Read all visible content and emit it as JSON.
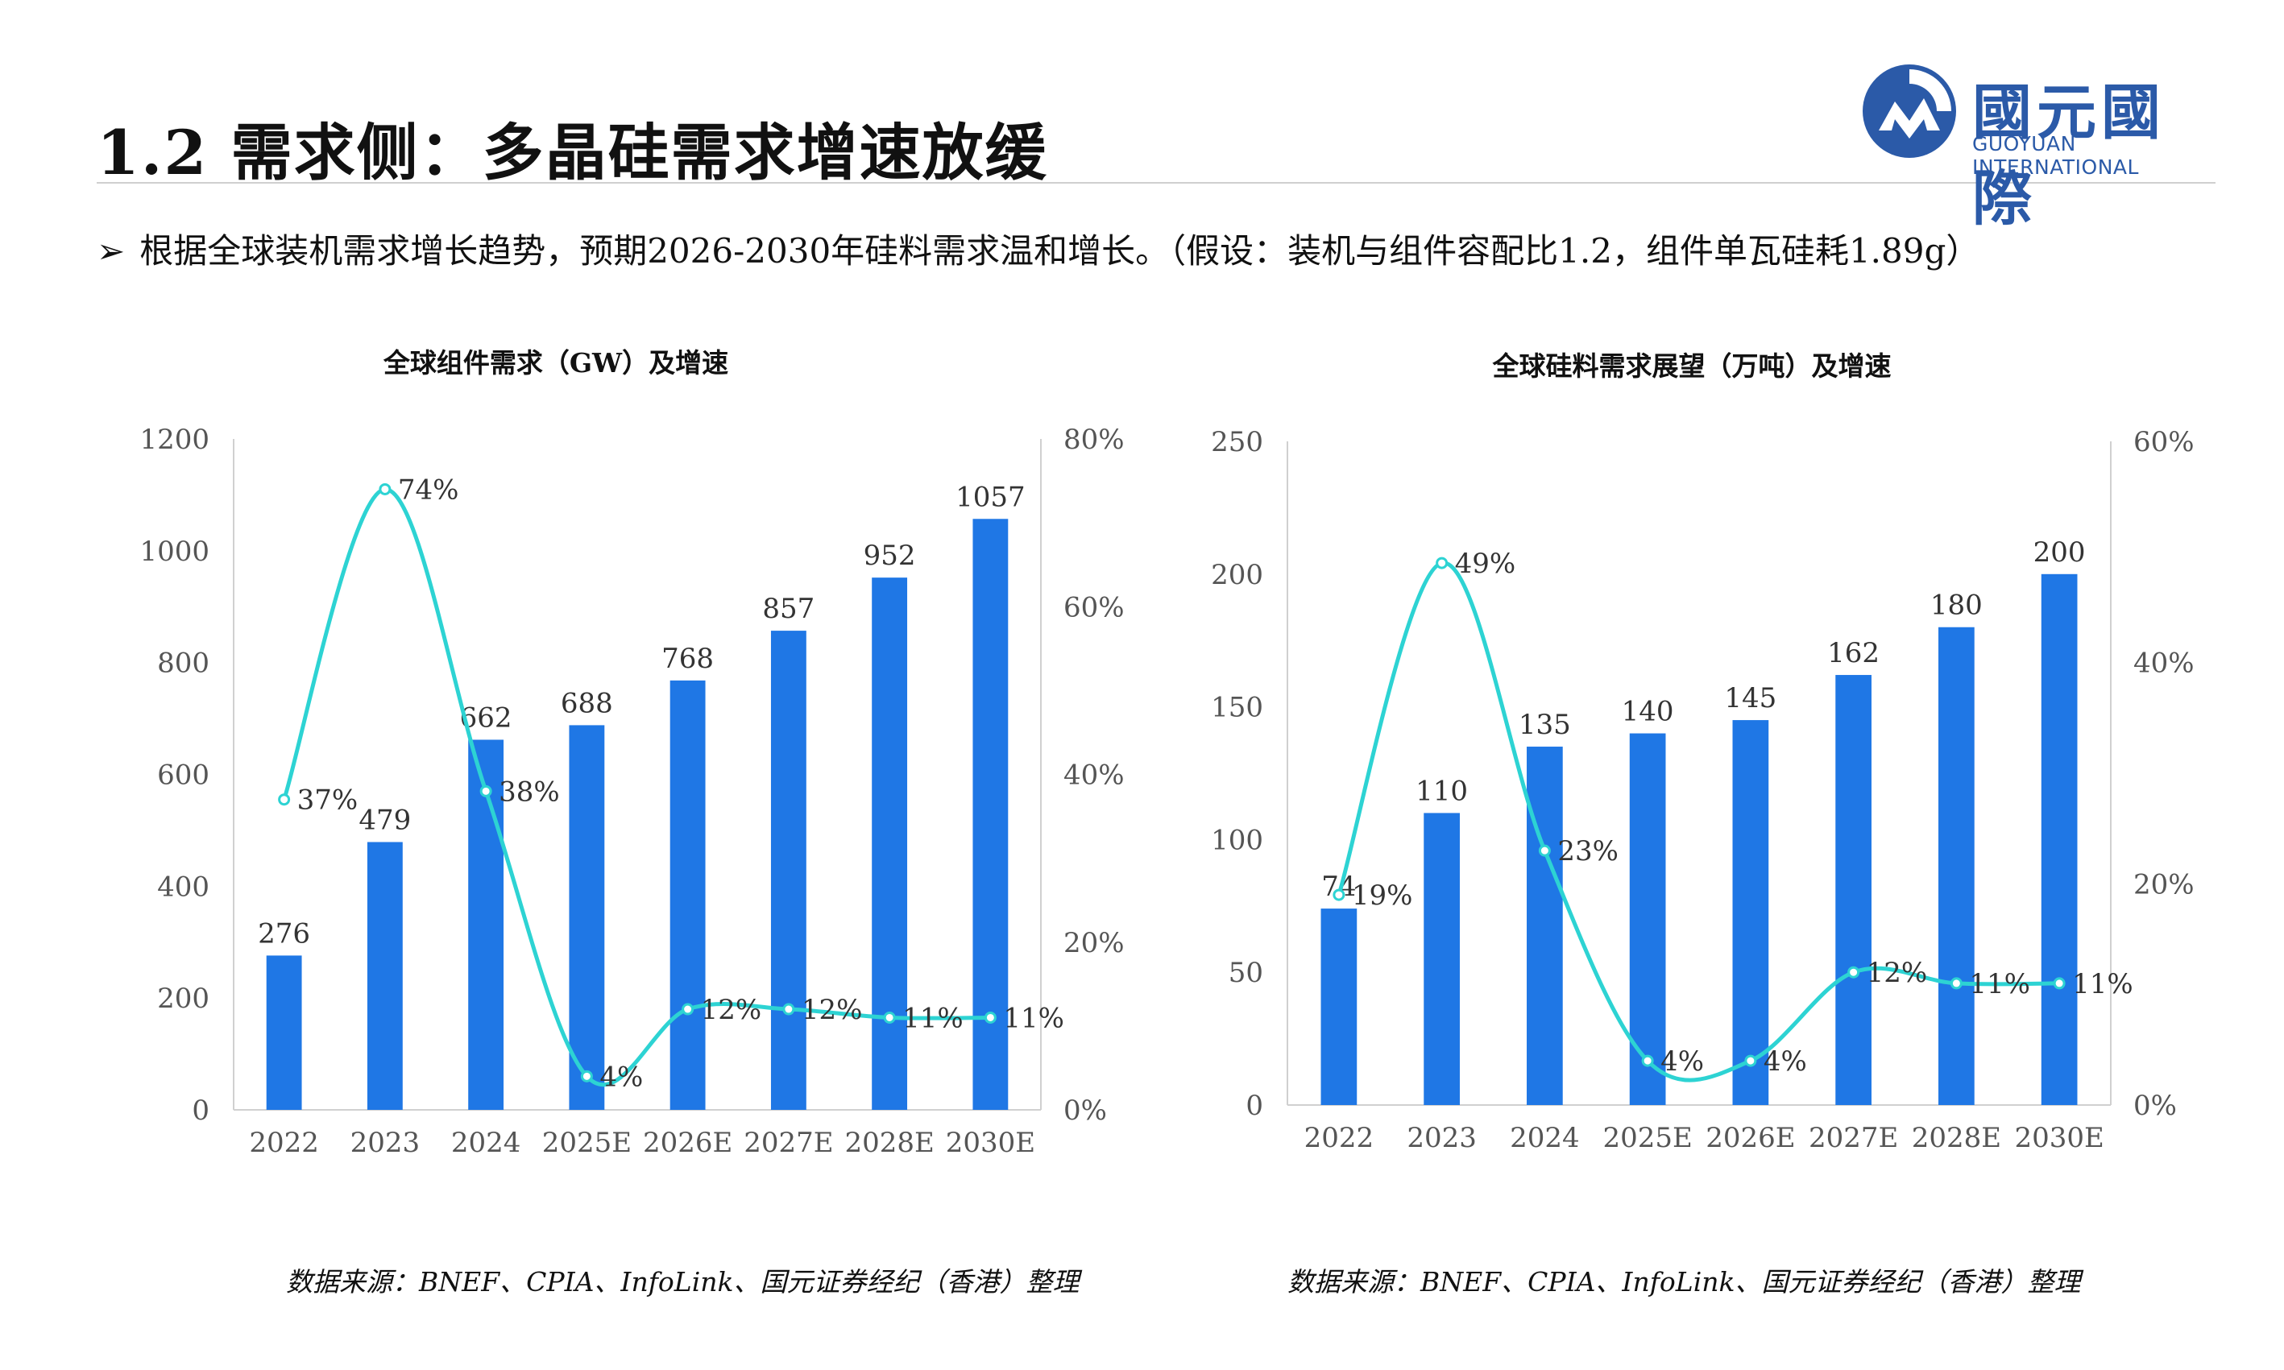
{
  "title": "1.2 需求侧：多晶硅需求增速放缓",
  "logo": {
    "cn": "國元國際",
    "en": "GUOYUAN INTERNATIONAL"
  },
  "bullet": {
    "marker": "➢",
    "text": "根据全球装机需求增长趋势，预期2026-2030年硅料需求温和增长。（假设：装机与组件容配比1.2，组件单瓦硅耗1.89g）"
  },
  "chart_data": [
    {
      "type": "bar",
      "title": "全球组件需求（GW）及增速",
      "categories": [
        "2022",
        "2023",
        "2024",
        "2025E",
        "2026E",
        "2027E",
        "2028E",
        "2030E"
      ],
      "series": [
        {
          "type": "bar",
          "values": [
            276,
            479,
            662,
            688,
            768,
            857,
            952,
            1057
          ],
          "color": "#1f77e5"
        },
        {
          "type": "line",
          "axis": "right",
          "values": [
            37,
            74,
            38,
            4,
            12,
            12,
            11,
            11
          ],
          "labels": [
            "37%",
            "74%",
            "38%",
            "4%",
            "12%",
            "12%",
            "11%",
            "11%"
          ],
          "color": "#2dd3d3"
        }
      ],
      "ylim": [
        0,
        1200
      ],
      "yticks": [
        0,
        200,
        400,
        600,
        800,
        1000,
        1200
      ],
      "y2lim": [
        0,
        80
      ],
      "y2ticks": [
        "0%",
        "20%",
        "40%",
        "60%",
        "80%"
      ],
      "source": "数据来源：BNEF、CPIA、InfoLink、国元证券经纪（香港）整理"
    },
    {
      "type": "bar",
      "title": "全球硅料需求展望（万吨）及增速",
      "categories": [
        "2022",
        "2023",
        "2024",
        "2025E",
        "2026E",
        "2027E",
        "2028E",
        "2030E"
      ],
      "series": [
        {
          "type": "bar",
          "values": [
            74,
            110,
            135,
            140,
            145,
            162,
            180,
            200
          ],
          "color": "#1f77e5"
        },
        {
          "type": "line",
          "axis": "right",
          "values": [
            19,
            49,
            23,
            4,
            4,
            12,
            11,
            11
          ],
          "labels": [
            "19%",
            "49%",
            "23%",
            "4%",
            "4%",
            "12%",
            "11%",
            "11%"
          ],
          "color": "#2dd3d3"
        }
      ],
      "ylim": [
        0,
        250
      ],
      "yticks": [
        0,
        50,
        100,
        150,
        200,
        250
      ],
      "y2lim": [
        0,
        60
      ],
      "y2ticks": [
        "0%",
        "20%",
        "40%",
        "60%"
      ],
      "source": "数据来源：BNEF、CPIA、InfoLink、国元证券经纪（香港）整理"
    }
  ]
}
